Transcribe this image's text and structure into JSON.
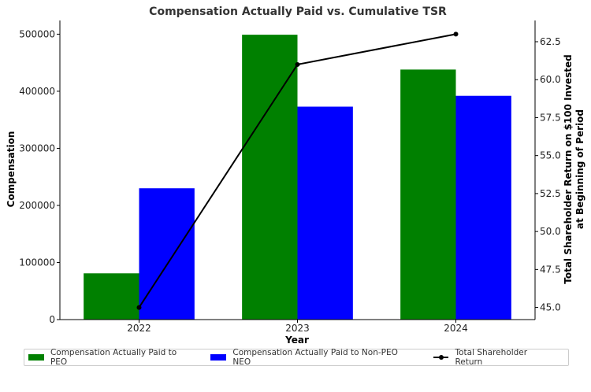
{
  "chart_data": {
    "type": "bar",
    "title": "Compensation Actually Paid vs. Cumulative TSR",
    "xlabel": "Year",
    "ylabel": "Compensation",
    "y2label_line1": "Total Shareholder Return on $100 Invested",
    "y2label_line2": "at Beginning of Period",
    "categories": [
      "2022",
      "2023",
      "2024"
    ],
    "series": [
      {
        "name": "Compensation Actually Paid to PEO",
        "type": "bar",
        "color": "#008000",
        "values": [
          81000,
          499000,
          438000
        ]
      },
      {
        "name": "Compensation Actually Paid to Non-PEO NEO",
        "type": "bar",
        "color": "#0000ff",
        "values": [
          230000,
          373000,
          392000
        ]
      },
      {
        "name": "Total Shareholder Return",
        "type": "line",
        "axis": "right",
        "color": "#000000",
        "values": [
          45.0,
          61.0,
          63.0
        ]
      }
    ],
    "ylim": [
      0,
      524000
    ],
    "yticks": [
      "0",
      "100000",
      "200000",
      "300000",
      "400000",
      "500000"
    ],
    "y2lim": [
      44.2,
      63.9
    ],
    "y2ticks": [
      "45.0",
      "47.5",
      "50.0",
      "52.5",
      "55.0",
      "57.5",
      "60.0",
      "62.5"
    ],
    "grid": false,
    "legend_position": "bottom"
  }
}
